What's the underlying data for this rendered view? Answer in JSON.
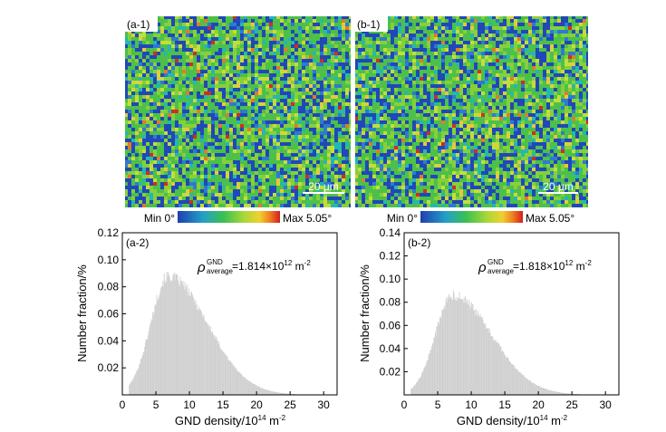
{
  "colors": {
    "map_palette": [
      "#2048b8",
      "#2f7ad0",
      "#24b8b0",
      "#4cc04a",
      "#86d03a",
      "#c6dc3c",
      "#e8c83a",
      "#e27a2a",
      "#d42c22"
    ],
    "map_weights": [
      0.26,
      0.06,
      0.06,
      0.34,
      0.17,
      0.07,
      0.02,
      0.012,
      0.008
    ],
    "bar_fill": "#e4e4e4",
    "bar_stroke": "#c4c4c4",
    "axis": "#000000"
  },
  "maps": [
    {
      "panel_label": "(a-1)",
      "scale_bar": "20 μm",
      "legend": {
        "min": "Min 0°",
        "max": "Max 5.05°"
      }
    },
    {
      "panel_label": "(b-1)",
      "scale_bar": "20 μm",
      "legend": {
        "min": "Min 0°",
        "max": "Max 5.05°"
      }
    }
  ],
  "chart_data": [
    {
      "type": "bar",
      "panel_label": "(a-2)",
      "title": "",
      "xlabel": "GND density/10",
      "xlabel_exp": "14",
      "xlabel_unit": "m",
      "xlabel_unit_exp": "-2",
      "ylabel": "Number fraction/%",
      "xlim": [
        0,
        32
      ],
      "ylim": [
        0,
        0.12
      ],
      "xticks": [
        0,
        5,
        10,
        15,
        20,
        25,
        30
      ],
      "yticks": [
        0.02,
        0.04,
        0.06,
        0.08,
        0.1,
        0.12
      ],
      "xtick_labels": [
        "0",
        "5",
        "10",
        "15",
        "20",
        "25",
        "30"
      ],
      "ytick_labels": [
        "0.02",
        "0.04",
        "0.06",
        "0.08",
        "0.10",
        "0.12"
      ],
      "annotation": {
        "symbol": "ρ",
        "superscript": "GND",
        "subscript": "average",
        "value": "=1.814×10",
        "exp": "12",
        "unit": "m",
        "unit_exp": "-2"
      },
      "bin_width": 0.1,
      "peak_x": 6.8,
      "peak_y": 0.092,
      "rise_sigma": 2.6,
      "fall_sigma": 5.8,
      "x_start": 1.0,
      "x_end": 26.5
    },
    {
      "type": "bar",
      "panel_label": "(b-2)",
      "title": "",
      "xlabel": "GND density/10",
      "xlabel_exp": "14",
      "xlabel_unit": "m",
      "xlabel_unit_exp": "-2",
      "ylabel": "Number fraction/%",
      "xlim": [
        0,
        32
      ],
      "ylim": [
        0,
        0.14
      ],
      "xticks": [
        0,
        5,
        10,
        15,
        20,
        25,
        30
      ],
      "yticks": [
        0.02,
        0.04,
        0.06,
        0.08,
        0.1,
        0.12,
        0.14
      ],
      "xtick_labels": [
        "0",
        "5",
        "10",
        "15",
        "20",
        "25",
        "30"
      ],
      "ytick_labels": [
        "0.02",
        "0.04",
        "0.06",
        "0.08",
        "0.10",
        "0.12",
        "0.14"
      ],
      "annotation": {
        "symbol": "ρ",
        "superscript": "GND",
        "subscript": "average",
        "value": "=1.818×10",
        "exp": "12",
        "unit": "m",
        "unit_exp": "-2"
      },
      "bin_width": 0.1,
      "peak_x": 7.2,
      "peak_y": 0.09,
      "rise_sigma": 2.6,
      "fall_sigma": 5.8,
      "x_start": 1.0,
      "x_end": 26.5
    }
  ]
}
